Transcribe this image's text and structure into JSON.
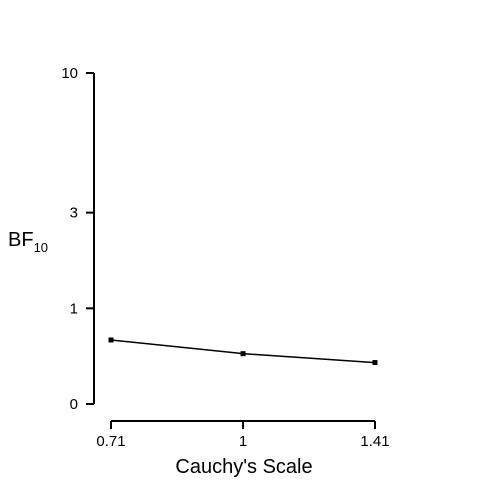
{
  "chart_data": {
    "type": "line",
    "xlabel": "Cauchy's Scale",
    "ylabel_main": "BF",
    "ylabel_sub": "10",
    "x": [
      0.707,
      1,
      1.414
    ],
    "x_tick_labels": [
      "0.71",
      "1",
      "1.41"
    ],
    "y_scale": "log (BF+1)",
    "y_ticks": [
      0,
      1,
      3,
      10
    ],
    "y_tick_labels": [
      "0",
      "1",
      "3",
      "10"
    ],
    "series": [
      {
        "values": [
          0.59,
          0.44,
          0.35
        ]
      }
    ],
    "grid": false,
    "legend": "none"
  }
}
